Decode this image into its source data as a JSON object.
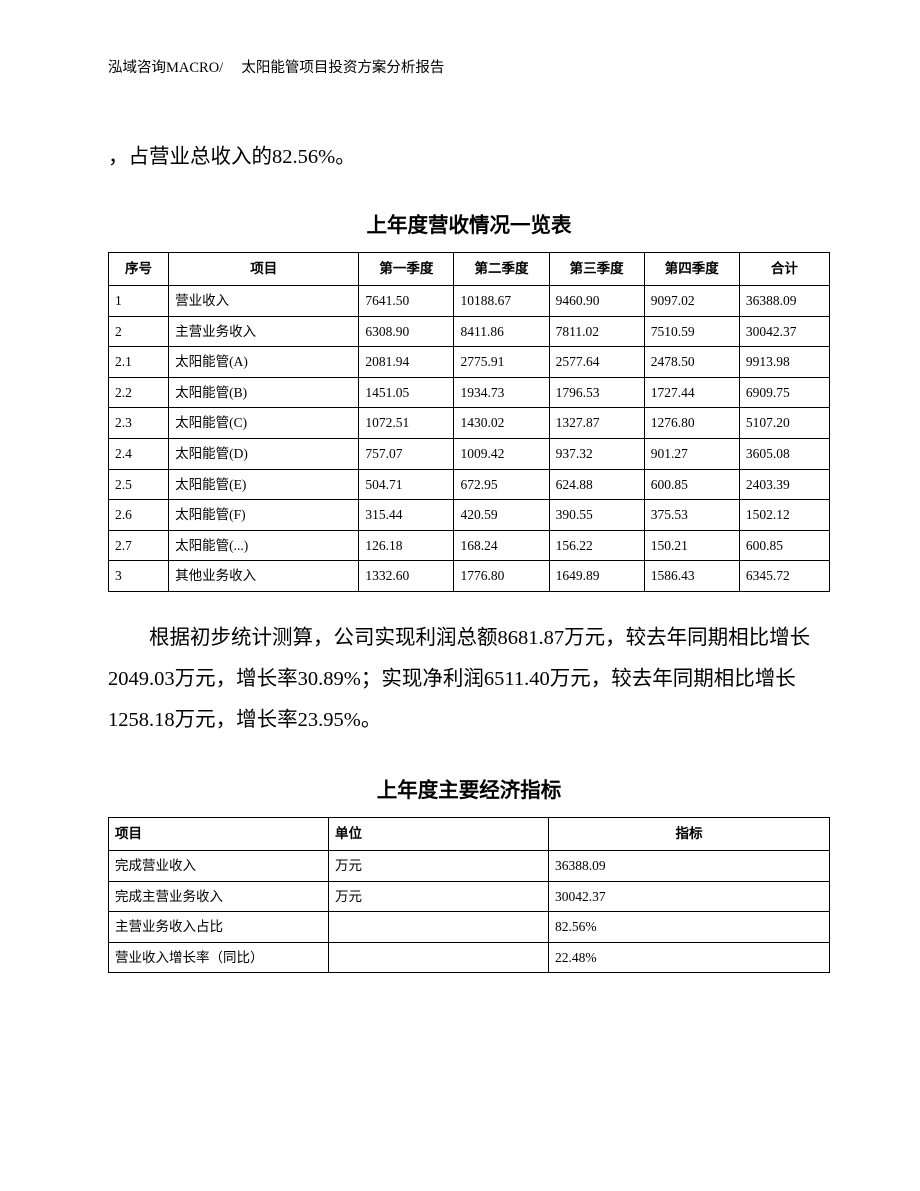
{
  "header": "泓域咨询MACRO/　 太阳能管项目投资方案分析报告",
  "para1": "，占营业总收入的82.56%。",
  "table1": {
    "title": "上年度营收情况一览表",
    "columns": [
      "序号",
      "项目",
      "第一季度",
      "第二季度",
      "第三季度",
      "第四季度",
      "合计"
    ],
    "rows": [
      [
        "1",
        "营业收入",
        "7641.50",
        "10188.67",
        "9460.90",
        "9097.02",
        "36388.09"
      ],
      [
        "2",
        "主营业务收入",
        "6308.90",
        "8411.86",
        "7811.02",
        "7510.59",
        "30042.37"
      ],
      [
        "2.1",
        "太阳能管(A)",
        "2081.94",
        "2775.91",
        "2577.64",
        "2478.50",
        "9913.98"
      ],
      [
        "2.2",
        "太阳能管(B)",
        "1451.05",
        "1934.73",
        "1796.53",
        "1727.44",
        "6909.75"
      ],
      [
        "2.3",
        "太阳能管(C)",
        "1072.51",
        "1430.02",
        "1327.87",
        "1276.80",
        "5107.20"
      ],
      [
        "2.4",
        "太阳能管(D)",
        "757.07",
        "1009.42",
        "937.32",
        "901.27",
        "3605.08"
      ],
      [
        "2.5",
        "太阳能管(E)",
        "504.71",
        "672.95",
        "624.88",
        "600.85",
        "2403.39"
      ],
      [
        "2.6",
        "太阳能管(F)",
        "315.44",
        "420.59",
        "390.55",
        "375.53",
        "1502.12"
      ],
      [
        "2.7",
        "太阳能管(...)",
        "126.18",
        "168.24",
        "156.22",
        "150.21",
        "600.85"
      ],
      [
        "3",
        "其他业务收入",
        "1332.60",
        "1776.80",
        "1649.89",
        "1586.43",
        "6345.72"
      ]
    ]
  },
  "para2": "根据初步统计测算，公司实现利润总额8681.87万元，较去年同期相比增长2049.03万元，增长率30.89%；实现净利润6511.40万元，较去年同期相比增长1258.18万元，增长率23.95%。",
  "table2": {
    "title": "上年度主要经济指标",
    "columns": [
      "项目",
      "单位",
      "指标"
    ],
    "rows": [
      [
        "完成营业收入",
        "万元",
        "36388.09"
      ],
      [
        "完成主营业务收入",
        "万元",
        "30042.37"
      ],
      [
        "主营业务收入占比",
        "",
        "82.56%"
      ],
      [
        "营业收入增长率（同比）",
        "",
        "22.48%"
      ]
    ]
  }
}
